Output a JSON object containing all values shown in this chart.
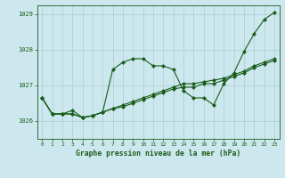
{
  "title": "Graphe pression niveau de la mer (hPa)",
  "x_labels": [
    "0",
    "1",
    "2",
    "3",
    "4",
    "5",
    "6",
    "7",
    "8",
    "9",
    "10",
    "11",
    "12",
    "13",
    "14",
    "15",
    "16",
    "17",
    "18",
    "19",
    "20",
    "21",
    "22",
    "23"
  ],
  "ylim": [
    1025.5,
    1029.25
  ],
  "yticks": [
    1026,
    1027,
    1028,
    1029
  ],
  "background_color": "#cce8ee",
  "grid_color": "#aacdd4",
  "line_color": "#1a5c1a",
  "series1": [
    1026.65,
    1026.2,
    1026.2,
    1026.3,
    1026.1,
    1026.15,
    1026.25,
    1027.45,
    1027.65,
    1027.75,
    1027.75,
    1027.55,
    1027.55,
    1027.45,
    1026.85,
    1026.65,
    1026.65,
    1026.45,
    1027.05,
    1027.35,
    1027.95,
    1028.45,
    1028.85,
    1029.05
  ],
  "series2": [
    1026.65,
    1026.2,
    1026.2,
    1026.2,
    1026.1,
    1026.15,
    1026.25,
    1026.35,
    1026.4,
    1026.5,
    1026.6,
    1026.7,
    1026.8,
    1026.9,
    1026.95,
    1026.95,
    1027.05,
    1027.05,
    1027.15,
    1027.25,
    1027.35,
    1027.5,
    1027.6,
    1027.7
  ],
  "series3": [
    1026.65,
    1026.2,
    1026.2,
    1026.2,
    1026.1,
    1026.15,
    1026.25,
    1026.35,
    1026.45,
    1026.55,
    1026.65,
    1026.75,
    1026.85,
    1026.95,
    1027.05,
    1027.05,
    1027.1,
    1027.15,
    1027.2,
    1027.3,
    1027.4,
    1027.55,
    1027.65,
    1027.75
  ]
}
